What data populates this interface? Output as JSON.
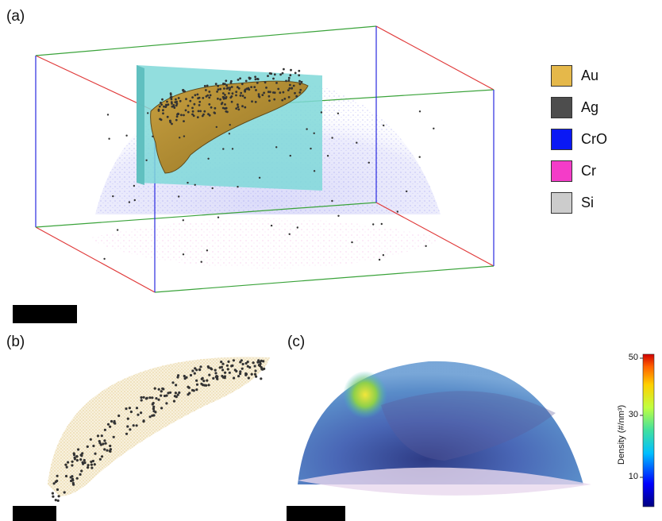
{
  "panels": {
    "a": "(a)",
    "b": "(b)",
    "c": "(c)"
  },
  "legend": [
    {
      "label": "Au",
      "color": "#e5b84a"
    },
    {
      "label": "Ag",
      "color": "#4d4d4d"
    },
    {
      "label": "CrO",
      "color": "#0a18f5"
    },
    {
      "label": "Cr",
      "color": "#f43cc8"
    },
    {
      "label": "Si",
      "color": "#cccccc"
    }
  ],
  "colorbar": {
    "title": "Density (#/nm³)",
    "ticks": [
      "50",
      "30",
      "10"
    ],
    "scale": "jet"
  },
  "colors": {
    "box_red": "#e03a3a",
    "box_green": "#3aa33a",
    "box_blue": "#2a2ae0",
    "plane": "#7fd8d8",
    "ag_atoms": "#333333",
    "au_atoms": "#c9a24a"
  }
}
